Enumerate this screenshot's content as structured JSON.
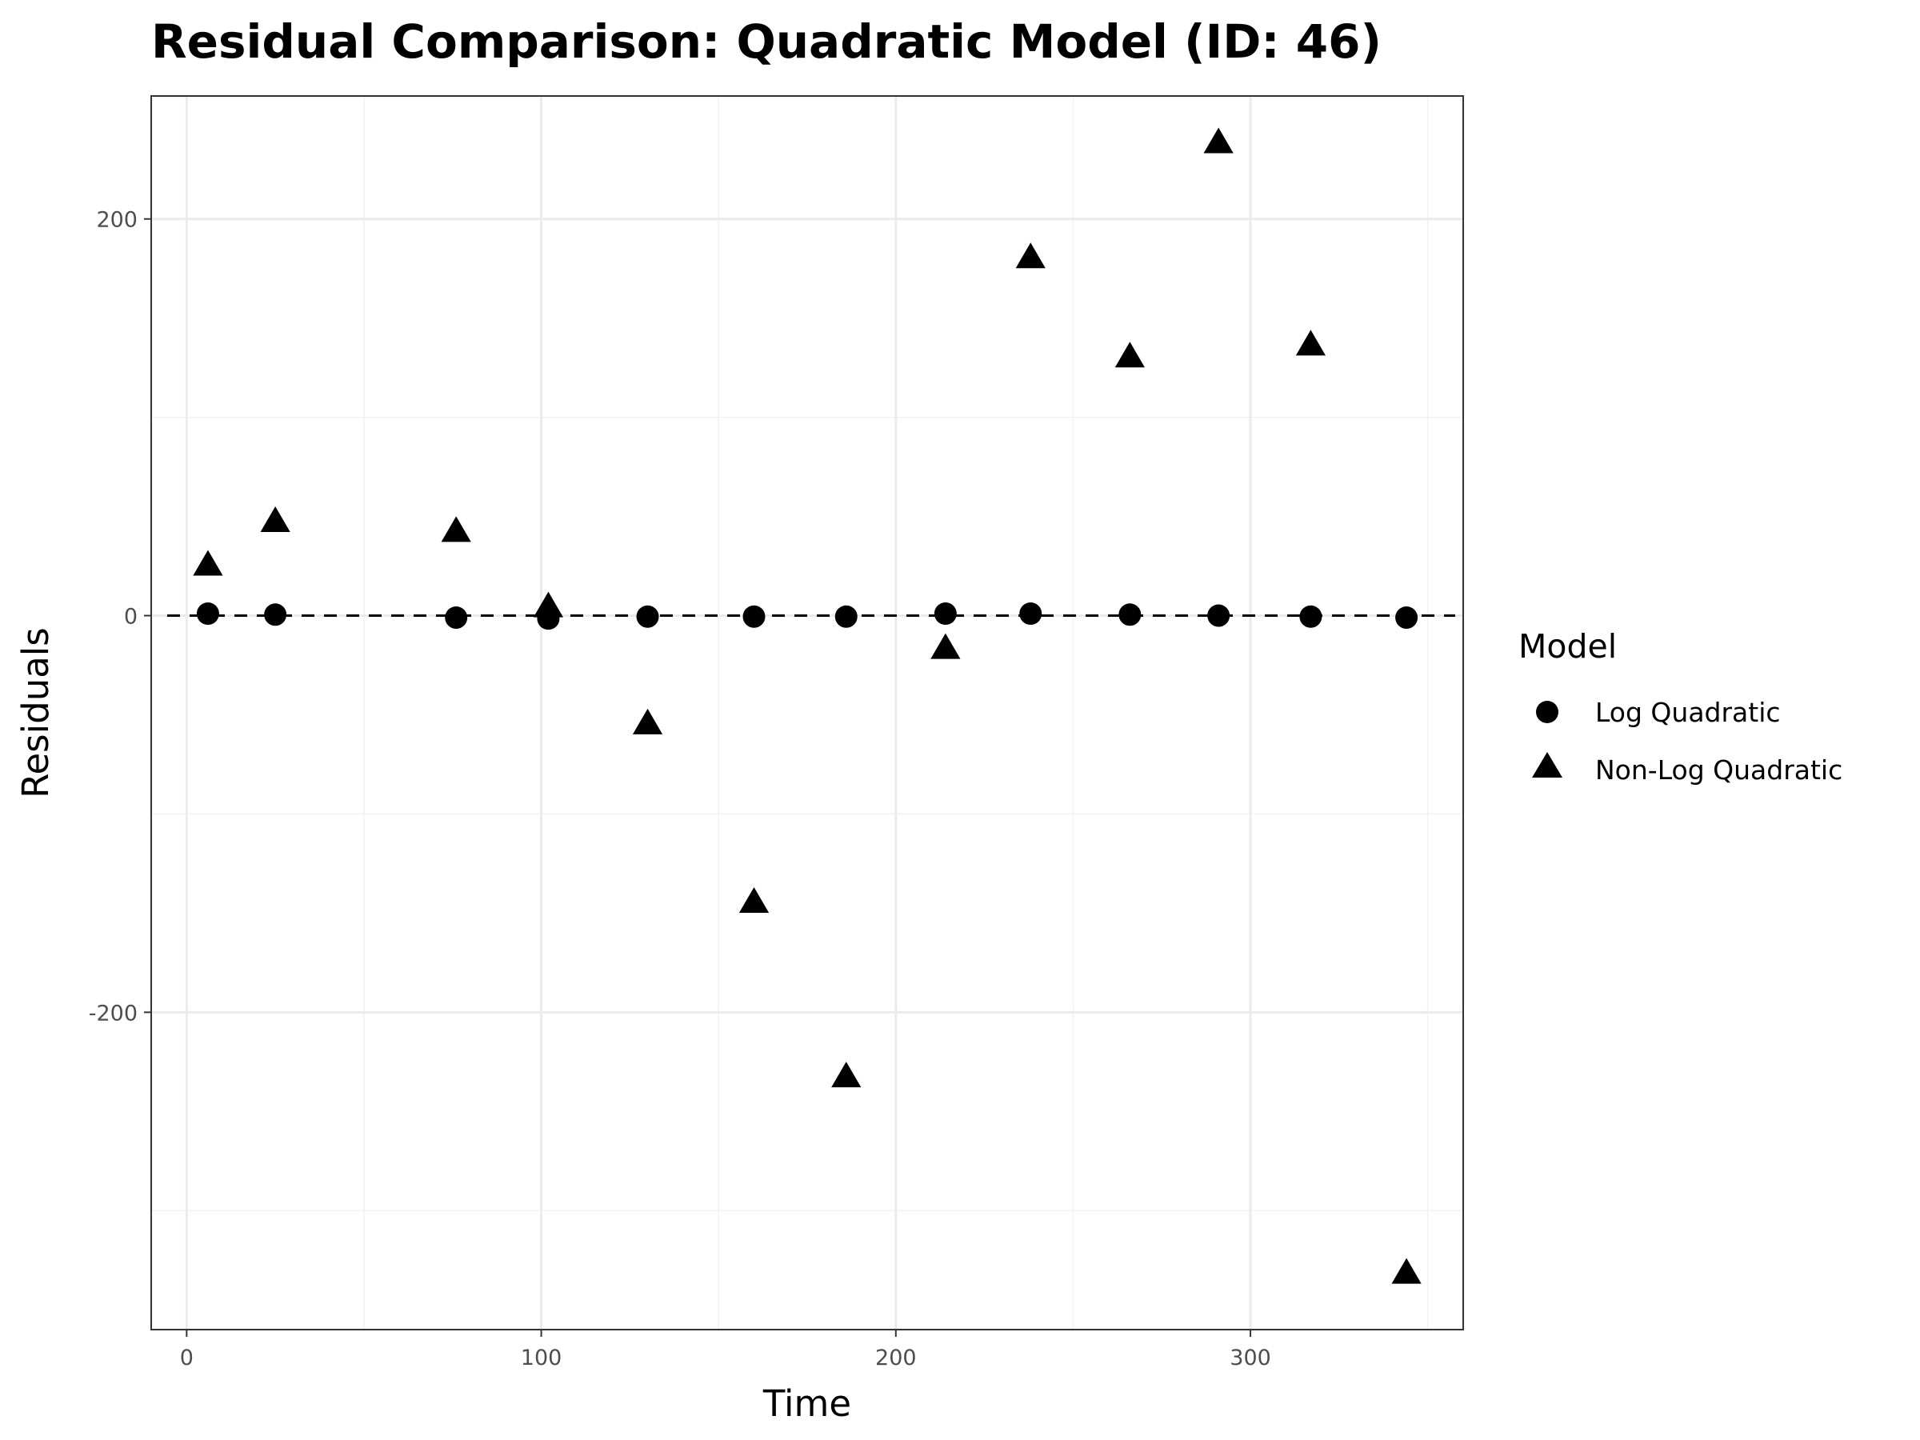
{
  "chart_data": {
    "type": "scatter",
    "title": "Residual Comparison: Quadratic Model (ID: 46)",
    "xlabel": "Time",
    "ylabel": "Residuals",
    "xlim": [
      -10,
      360
    ],
    "ylim": [
      -360,
      262
    ],
    "x_ticks": [
      0,
      100,
      200,
      300
    ],
    "x_tick_labels": [
      "0",
      "100",
      "200",
      "300"
    ],
    "x_minor_ticks": [
      50,
      150,
      250,
      350
    ],
    "y_ticks": [
      -200,
      0,
      200
    ],
    "y_tick_labels": [
      "-200",
      "0",
      "200"
    ],
    "y_minor_ticks": [
      -300,
      -100,
      100
    ],
    "grid": true,
    "reference_line": {
      "y": 0,
      "style": "dashed"
    },
    "legend": {
      "title": "Model",
      "position": "right"
    },
    "series": [
      {
        "name": "Log Quadratic",
        "marker": "circle",
        "color": "#000000",
        "x": [
          6,
          25,
          76,
          102,
          130,
          160,
          186,
          214,
          238,
          266,
          291,
          317,
          344
        ],
        "y": [
          1,
          0.5,
          -1,
          -1.5,
          -0.5,
          -0.5,
          -0.5,
          1,
          1,
          0.5,
          0,
          -0.5,
          -1
        ]
      },
      {
        "name": "Non-Log Quadratic",
        "marker": "triangle",
        "color": "#000000",
        "x": [
          6,
          25,
          76,
          102,
          130,
          160,
          186,
          214,
          238,
          266,
          291,
          317,
          344
        ],
        "y": [
          25,
          47,
          42,
          4,
          -55,
          -145,
          -233,
          -17,
          180,
          130,
          238,
          136,
          -332
        ]
      }
    ]
  }
}
